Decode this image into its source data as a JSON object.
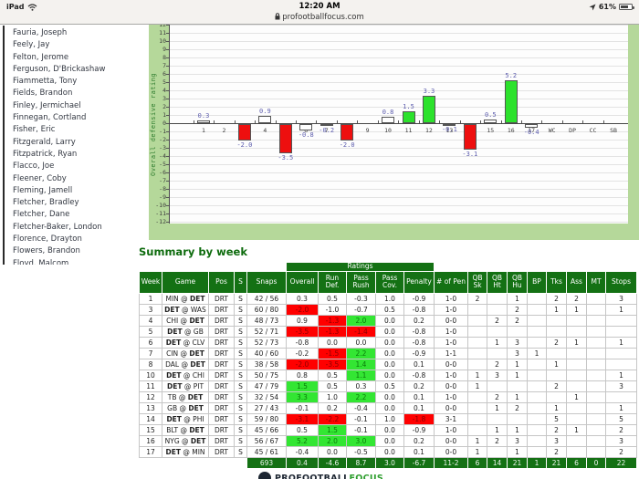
{
  "status_bar": {
    "device": "iPad",
    "time": "12:20 AM",
    "url": "profootballfocus.com",
    "battery": "61%"
  },
  "sidebar": {
    "players": [
      "Fauria, Joseph",
      "Feely, Jay",
      "Felton, Jerome",
      "Ferguson, D'Brickashaw",
      "Fiammetta, Tony",
      "Fields, Brandon",
      "Finley, Jermichael",
      "Finnegan, Cortland",
      "Fisher, Eric",
      "Fitzgerald, Larry",
      "Fitzpatrick, Ryan",
      "Flacco, Joe",
      "Fleener, Coby",
      "Fleming, Jamell",
      "Fletcher, Bradley",
      "Fletcher, Dane",
      "Fletcher-Baker, London",
      "Florence, Drayton",
      "Flowers, Brandon",
      "Floyd, Malcom"
    ]
  },
  "chart_data": {
    "type": "bar",
    "title": "",
    "xlabel": "",
    "ylabel": "Overall defensive rating",
    "ylim": [
      -12,
      12
    ],
    "grid": true,
    "legend": "none",
    "categories": [
      "1",
      "2",
      "3",
      "4",
      "5",
      "6",
      "7",
      "8",
      "9",
      "10",
      "11",
      "12",
      "13",
      "14",
      "15",
      "16",
      "17",
      "WC",
      "DP",
      "CC",
      "SB"
    ],
    "values": [
      0.3,
      null,
      -2.0,
      0.9,
      -3.5,
      -0.8,
      -0.2,
      -2.0,
      null,
      0.8,
      1.5,
      3.3,
      -0.1,
      -3.1,
      0.5,
      5.2,
      -0.4,
      null,
      null,
      null,
      null
    ],
    "value_labels": [
      "0.3",
      null,
      "-2.0",
      "0.9",
      "-3.5",
      "-0.8",
      "-0.2",
      "-2.0",
      null,
      "0.8",
      "1.5",
      "3.3",
      "-0.1",
      "-3.1",
      "0.5",
      "5.2",
      "-0.4",
      null,
      null,
      null,
      null
    ],
    "bar_colors": [
      "white",
      null,
      "red",
      "white",
      "red",
      "white",
      "white",
      "red",
      null,
      "white",
      "green",
      "green",
      "white",
      "red",
      "white",
      "green",
      "white",
      null,
      null,
      null,
      null
    ],
    "colors": {
      "positive_good": "#2ce22c",
      "negative_bad": "#ee0f0f",
      "neutral": "#ffffff",
      "label": "#5d5dae",
      "background": "#b5d89a"
    }
  },
  "summary": {
    "title": "Summary by week"
  },
  "table": {
    "group_header": "Ratings",
    "headers": [
      "Week",
      "Game",
      "Pos",
      "S",
      "Snaps",
      "Overall",
      "Run Def.",
      "Pass Rush",
      "Pass Cov.",
      "Penalty",
      "# of Pen",
      "QB Sk",
      "QB Ht",
      "QB Hu",
      "BP",
      "Tks",
      "Ass",
      "MT",
      "Stops"
    ],
    "rows": [
      {
        "week": "1",
        "game": "MIN @ DET",
        "pos": "DRT",
        "start": "S",
        "snaps": "42 / 56",
        "ratings": [
          {
            "v": "0.3"
          },
          {
            "v": "0.5"
          },
          {
            "v": "-0.3"
          },
          {
            "v": "1.0"
          },
          {
            "v": "-0.9"
          }
        ],
        "pen": "1-0",
        "stats": [
          "2",
          "",
          "1",
          "",
          "2",
          "2",
          "",
          "3"
        ]
      },
      {
        "week": "3",
        "game": "DET @ WAS",
        "pos": "DRT",
        "start": "S",
        "snaps": "60 / 80",
        "ratings": [
          {
            "v": "-2.0",
            "bg": "red"
          },
          {
            "v": "-1.0"
          },
          {
            "v": "-0.7"
          },
          {
            "v": "0.5"
          },
          {
            "v": "-0.8"
          }
        ],
        "pen": "1-0",
        "stats": [
          "",
          "",
          "2",
          "",
          "1",
          "1",
          "",
          "1"
        ]
      },
      {
        "week": "4",
        "game": "CHI @ DET",
        "pos": "DRT",
        "start": "S",
        "snaps": "48 / 73",
        "ratings": [
          {
            "v": "0.9"
          },
          {
            "v": "-1.3",
            "bg": "red"
          },
          {
            "v": "2.0",
            "bg": "green"
          },
          {
            "v": "0.0"
          },
          {
            "v": "0.2"
          }
        ],
        "pen": "0-0",
        "stats": [
          "",
          "2",
          "2",
          "",
          "",
          "",
          "",
          ""
        ]
      },
      {
        "week": "5",
        "game": "DET @ GB",
        "pos": "DRT",
        "start": "S",
        "snaps": "52 / 71",
        "ratings": [
          {
            "v": "-3.5",
            "bg": "red"
          },
          {
            "v": "-1.3",
            "bg": "red"
          },
          {
            "v": "-1.4",
            "bg": "red"
          },
          {
            "v": "0.0"
          },
          {
            "v": "-0.8"
          }
        ],
        "pen": "1-0",
        "stats": [
          "",
          "",
          "",
          "",
          "",
          "",
          "",
          ""
        ]
      },
      {
        "week": "6",
        "game": "DET @ CLV",
        "pos": "DRT",
        "start": "S",
        "snaps": "52 / 73",
        "ratings": [
          {
            "v": "-0.8"
          },
          {
            "v": "0.0"
          },
          {
            "v": "0.0"
          },
          {
            "v": "0.0"
          },
          {
            "v": "-0.8"
          }
        ],
        "pen": "1-0",
        "stats": [
          "",
          "1",
          "3",
          "",
          "2",
          "1",
          "",
          "1"
        ]
      },
      {
        "week": "7",
        "game": "CIN @ DET",
        "pos": "DRT",
        "start": "S",
        "snaps": "40 / 60",
        "ratings": [
          {
            "v": "-0.2"
          },
          {
            "v": "-1.5",
            "bg": "red"
          },
          {
            "v": "2.2",
            "bg": "green"
          },
          {
            "v": "0.0"
          },
          {
            "v": "-0.9"
          }
        ],
        "pen": "1-1",
        "stats": [
          "",
          "",
          "3",
          "1",
          "",
          "",
          "",
          ""
        ]
      },
      {
        "week": "8",
        "game": "DAL @ DET",
        "pos": "DRT",
        "start": "S",
        "snaps": "38 / 58",
        "ratings": [
          {
            "v": "-2.0",
            "bg": "red"
          },
          {
            "v": "-3.5",
            "bg": "red"
          },
          {
            "v": "1.4",
            "bg": "green"
          },
          {
            "v": "0.0"
          },
          {
            "v": "0.1"
          }
        ],
        "pen": "0-0",
        "stats": [
          "",
          "2",
          "1",
          "",
          "1",
          "",
          "",
          ""
        ]
      },
      {
        "week": "10",
        "game": "DET @ CHI",
        "pos": "DRT",
        "start": "S",
        "snaps": "50 / 75",
        "ratings": [
          {
            "v": "0.8"
          },
          {
            "v": "0.5"
          },
          {
            "v": "1.1",
            "bg": "green"
          },
          {
            "v": "0.0"
          },
          {
            "v": "-0.8"
          }
        ],
        "pen": "1-0",
        "stats": [
          "1",
          "3",
          "1",
          "",
          "",
          "",
          "",
          "1"
        ]
      },
      {
        "week": "11",
        "game": "DET @ PIT",
        "pos": "DRT",
        "start": "S",
        "snaps": "47 / 79",
        "ratings": [
          {
            "v": "1.5",
            "bg": "green"
          },
          {
            "v": "0.5"
          },
          {
            "v": "0.3"
          },
          {
            "v": "0.5"
          },
          {
            "v": "0.2"
          }
        ],
        "pen": "0-0",
        "stats": [
          "1",
          "",
          "",
          "",
          "2",
          "",
          "",
          "3"
        ]
      },
      {
        "week": "12",
        "game": "TB @ DET",
        "pos": "DRT",
        "start": "S",
        "snaps": "32 / 54",
        "ratings": [
          {
            "v": "3.3",
            "bg": "green"
          },
          {
            "v": "1.0"
          },
          {
            "v": "2.2",
            "bg": "green"
          },
          {
            "v": "0.0"
          },
          {
            "v": "0.1"
          }
        ],
        "pen": "1-0",
        "stats": [
          "",
          "2",
          "1",
          "",
          "",
          "1",
          "",
          ""
        ]
      },
      {
        "week": "13",
        "game": "GB @ DET",
        "pos": "DRT",
        "start": "S",
        "snaps": "27 / 43",
        "ratings": [
          {
            "v": "-0.1"
          },
          {
            "v": "0.2"
          },
          {
            "v": "-0.4"
          },
          {
            "v": "0.0"
          },
          {
            "v": "0.1"
          }
        ],
        "pen": "0-0",
        "stats": [
          "",
          "1",
          "2",
          "",
          "1",
          "",
          "",
          "1"
        ]
      },
      {
        "week": "14",
        "game": "DET @ PHI",
        "pos": "DRT",
        "start": "S",
        "snaps": "59 / 80",
        "ratings": [
          {
            "v": "-3.1",
            "bg": "red"
          },
          {
            "v": "-2.2",
            "bg": "red"
          },
          {
            "v": "-0.1"
          },
          {
            "v": "1.0"
          },
          {
            "v": "-1.8",
            "bg": "red"
          }
        ],
        "pen": "3-1",
        "stats": [
          "",
          "",
          "",
          "",
          "5",
          "",
          "",
          "5"
        ]
      },
      {
        "week": "15",
        "game": "BLT @ DET",
        "pos": "DRT",
        "start": "S",
        "snaps": "45 / 66",
        "ratings": [
          {
            "v": "0.5"
          },
          {
            "v": "1.5",
            "bg": "green"
          },
          {
            "v": "-0.1"
          },
          {
            "v": "0.0"
          },
          {
            "v": "-0.9"
          }
        ],
        "pen": "1-0",
        "stats": [
          "",
          "1",
          "1",
          "",
          "2",
          "1",
          "",
          "2"
        ]
      },
      {
        "week": "16",
        "game": "NYG @ DET",
        "pos": "DRT",
        "start": "S",
        "snaps": "56 / 67",
        "ratings": [
          {
            "v": "5.2",
            "bg": "green"
          },
          {
            "v": "2.0",
            "bg": "green"
          },
          {
            "v": "3.0",
            "bg": "green"
          },
          {
            "v": "0.0"
          },
          {
            "v": "0.2"
          }
        ],
        "pen": "0-0",
        "stats": [
          "1",
          "2",
          "3",
          "",
          "3",
          "",
          "",
          "3"
        ]
      },
      {
        "week": "17",
        "game": "DET @ MIN",
        "pos": "DRT",
        "start": "S",
        "snaps": "45 / 61",
        "ratings": [
          {
            "v": "-0.4"
          },
          {
            "v": "0.0"
          },
          {
            "v": "-0.5"
          },
          {
            "v": "0.0"
          },
          {
            "v": "0.1"
          }
        ],
        "pen": "0-0",
        "stats": [
          "1",
          "",
          "1",
          "",
          "2",
          "",
          "",
          "2"
        ]
      }
    ],
    "total": {
      "snaps": "693",
      "ratings": [
        "0.4",
        "-4.6",
        "8.7",
        "3.0",
        "-6.7"
      ],
      "pen": "11-2",
      "stats": [
        "6",
        "14",
        "21",
        "1",
        "21",
        "6",
        "0",
        "22"
      ]
    }
  },
  "footer": {
    "logo_primary": "PROFOOTBALL",
    "logo_secondary": "FOCUS"
  }
}
